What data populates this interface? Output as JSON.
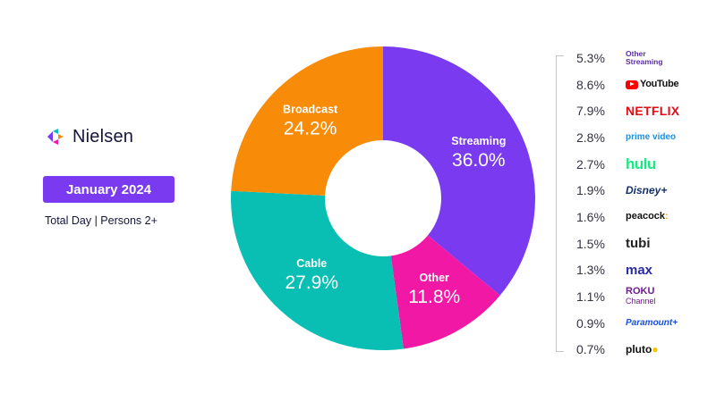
{
  "brand": {
    "name": "Nielsen",
    "date_label": "January 2024",
    "subtitle": "Total Day | Persons 2+"
  },
  "chart_data": {
    "type": "donut",
    "segments": [
      {
        "label": "Streaming",
        "value": 36.0,
        "display": "36.0%",
        "color": "#7a3af0"
      },
      {
        "label": "Other",
        "value": 11.8,
        "display": "11.8%",
        "color": "#f218a6"
      },
      {
        "label": "Cable",
        "value": 27.9,
        "display": "27.9%",
        "color": "#09bfb4"
      },
      {
        "label": "Broadcast",
        "value": 24.2,
        "display": "24.2%",
        "color": "#f88c08"
      }
    ],
    "streaming_breakdown": [
      {
        "service": "Other Streaming",
        "value": 5.3,
        "display": "5.3%"
      },
      {
        "service": "YouTube Main",
        "value": 8.6,
        "display": "8.6%"
      },
      {
        "service": "NETFLIX",
        "value": 7.9,
        "display": "7.9%"
      },
      {
        "service": "prime video",
        "value": 2.8,
        "display": "2.8%"
      },
      {
        "service": "hulu SVOD",
        "value": 2.7,
        "display": "2.7%"
      },
      {
        "service": "Disney+",
        "value": 1.9,
        "display": "1.9%"
      },
      {
        "service": "peacock",
        "value": 1.6,
        "display": "1.6%"
      },
      {
        "service": "tubi",
        "value": 1.5,
        "display": "1.5%"
      },
      {
        "service": "max",
        "value": 1.3,
        "display": "1.3%"
      },
      {
        "service": "Roku Channel",
        "value": 1.1,
        "display": "1.1%"
      },
      {
        "service": "Paramount+",
        "value": 0.9,
        "display": "0.9%"
      },
      {
        "service": "pluto tv",
        "value": 0.7,
        "display": "0.7%"
      }
    ]
  }
}
